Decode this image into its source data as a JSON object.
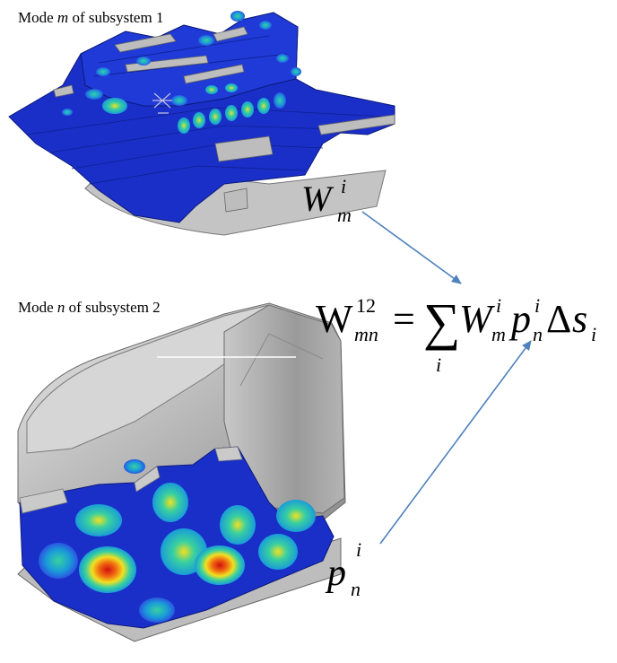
{
  "captions": {
    "mode_m": {
      "prefix": "Mode ",
      "var": "m",
      "suffix": " of subsystem 1"
    },
    "mode_n": {
      "prefix": "Mode ",
      "var": "n",
      "suffix": " of subsystem 2"
    }
  },
  "labels": {
    "w_symbol": "W",
    "w_sup": "i",
    "w_sub": "m",
    "p_symbol": "p",
    "p_sup": "i",
    "p_sub": "n"
  },
  "equation": {
    "lhs_symbol": "W",
    "lhs_sup": "12",
    "lhs_sub": "mn",
    "equals": "=",
    "sum": "∑",
    "sum_index": "i",
    "term_w": "W",
    "term_w_sup": "i",
    "term_w_sub": "m",
    "term_p": "p",
    "term_p_sup": "i",
    "term_p_sub": "n",
    "delta": "Δ",
    "term_s": "s",
    "term_s_sub": "i"
  },
  "colors": {
    "arrow": "#4f81bd",
    "mesh_blue": "#1a2fc8",
    "mesh_gray": "#b8b8b8",
    "hot": "#d01010",
    "warm": "#f2e020",
    "cool": "#38d0a0"
  }
}
